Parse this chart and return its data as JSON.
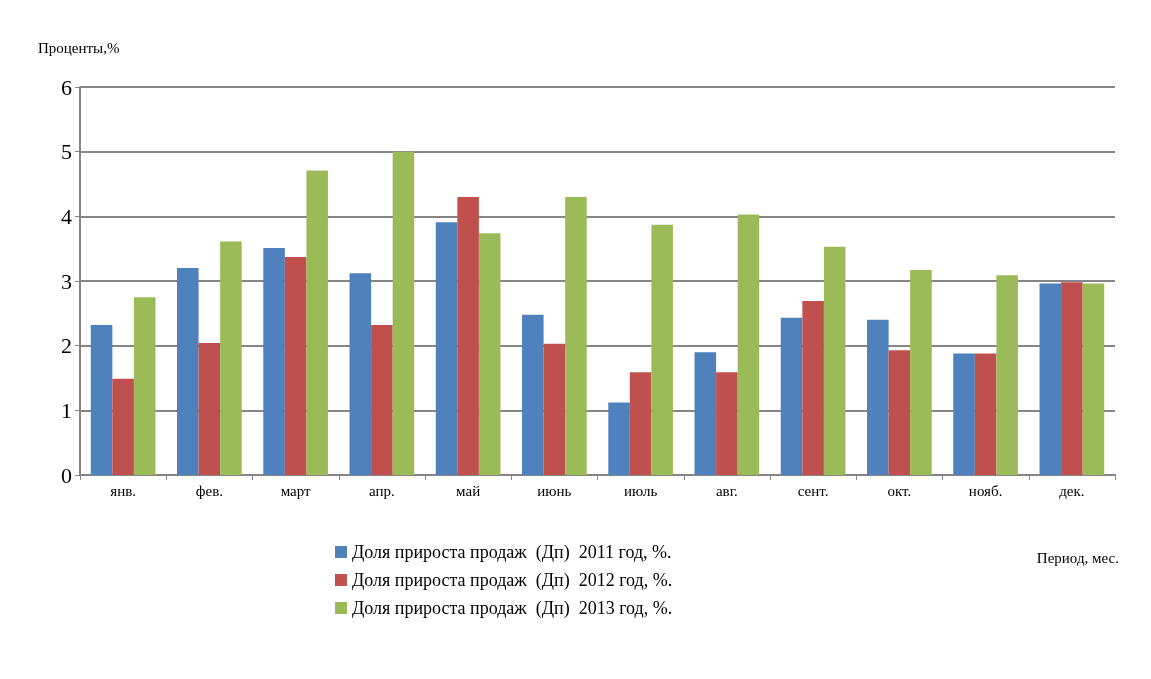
{
  "chart_data": {
    "type": "bar",
    "ylabel": "Проценты,%",
    "xlabel": "Период, мес.",
    "categories": [
      "янв.",
      "фев.",
      "март",
      "апр.",
      "май",
      "июнь",
      "июль",
      "авг.",
      "сент.",
      "окт.",
      "нояб.",
      "дек."
    ],
    "series": [
      {
        "name": "Доля прироста продаж  (Дп)  2011 год, %.",
        "color": "#4f81bd",
        "values": [
          2.32,
          3.2,
          3.51,
          3.12,
          3.91,
          2.48,
          1.12,
          1.9,
          2.43,
          2.4,
          1.88,
          2.96
        ]
      },
      {
        "name": "Доля прироста продаж  (Дп)  2012 год, %.",
        "color": "#c0504d",
        "values": [
          1.49,
          2.04,
          3.37,
          2.32,
          4.3,
          2.03,
          1.59,
          1.59,
          2.69,
          1.93,
          1.88,
          2.98
        ]
      },
      {
        "name": "Доля прироста продаж  (Дп)  2013 год, %.",
        "color": "#9bbb59",
        "values": [
          2.75,
          3.61,
          4.71,
          5.0,
          3.74,
          4.3,
          3.87,
          4.03,
          3.53,
          3.17,
          3.09,
          2.96
        ]
      }
    ],
    "ylim": [
      0,
      6
    ],
    "yticks": [
      0,
      1,
      2,
      3,
      4,
      5,
      6
    ],
    "grid": "y",
    "legend": "bottom"
  }
}
